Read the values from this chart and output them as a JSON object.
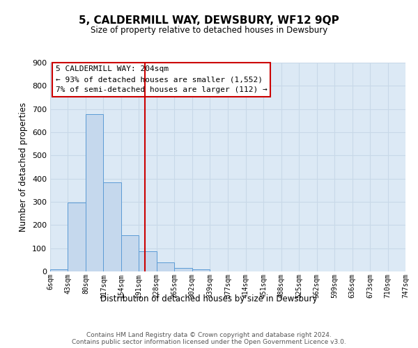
{
  "title": "5, CALDERMILL WAY, DEWSBURY, WF12 9QP",
  "subtitle": "Size of property relative to detached houses in Dewsbury",
  "xlabel": "Distribution of detached houses by size in Dewsbury",
  "ylabel": "Number of detached properties",
  "bar_values": [
    8,
    297,
    678,
    384,
    155,
    88,
    40,
    15,
    10,
    0,
    0,
    0,
    0,
    0,
    0,
    0,
    0,
    0,
    0,
    0
  ],
  "bin_edges": [
    6,
    43,
    80,
    117,
    154,
    191,
    228,
    265,
    302,
    339,
    377,
    414,
    451,
    488,
    525,
    562,
    599,
    636,
    673,
    710,
    747
  ],
  "tick_labels": [
    "6sqm",
    "43sqm",
    "80sqm",
    "117sqm",
    "154sqm",
    "191sqm",
    "228sqm",
    "265sqm",
    "302sqm",
    "339sqm",
    "377sqm",
    "414sqm",
    "451sqm",
    "488sqm",
    "525sqm",
    "562sqm",
    "599sqm",
    "636sqm",
    "673sqm",
    "710sqm",
    "747sqm"
  ],
  "bar_color": "#c5d8ed",
  "bar_edge_color": "#5b9bd5",
  "vline_x": 204,
  "vline_color": "#cc0000",
  "ylim": [
    0,
    900
  ],
  "yticks": [
    0,
    100,
    200,
    300,
    400,
    500,
    600,
    700,
    800,
    900
  ],
  "annotation_lines": [
    "5 CALDERMILL WAY: 204sqm",
    "← 93% of detached houses are smaller (1,552)",
    "7% of semi-detached houses are larger (112) →"
  ],
  "annotation_box_color": "#cc0000",
  "grid_color": "#c8d8e8",
  "background_color": "#dce9f5",
  "footer_lines": [
    "Contains HM Land Registry data © Crown copyright and database right 2024.",
    "Contains public sector information licensed under the Open Government Licence v3.0."
  ]
}
